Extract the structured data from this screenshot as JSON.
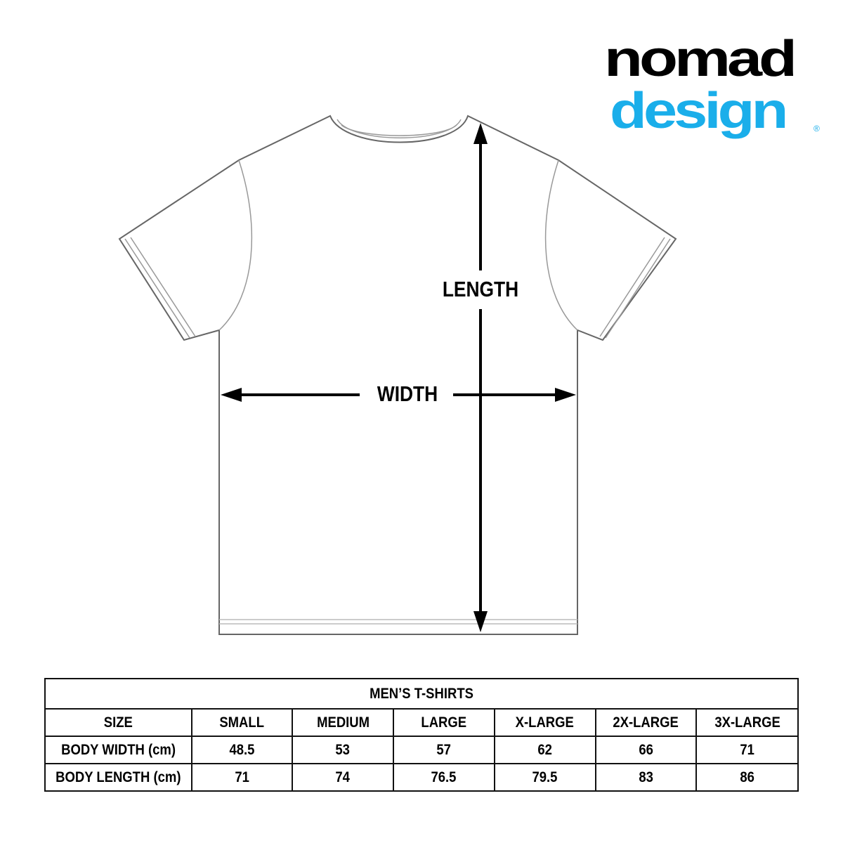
{
  "logo": {
    "line1": "nomad",
    "line2": "design",
    "registered": "®",
    "colors": {
      "nomad": "#000000",
      "design": "#1aaeea"
    }
  },
  "diagram": {
    "length_label": "LENGTH",
    "width_label": "WIDTH"
  },
  "table": {
    "title": "MEN’S T-SHIRTS",
    "header": [
      "SIZE",
      "SMALL",
      "MEDIUM",
      "LARGE",
      "X-LARGE",
      "2X-LARGE",
      "3X-LARGE"
    ],
    "rows": [
      [
        "BODY WIDTH (cm)",
        "48.5",
        "53",
        "57",
        "62",
        "66",
        "71"
      ],
      [
        "BODY LENGTH (cm)",
        "71",
        "74",
        "76.5",
        "79.5",
        "83",
        "86"
      ]
    ]
  }
}
